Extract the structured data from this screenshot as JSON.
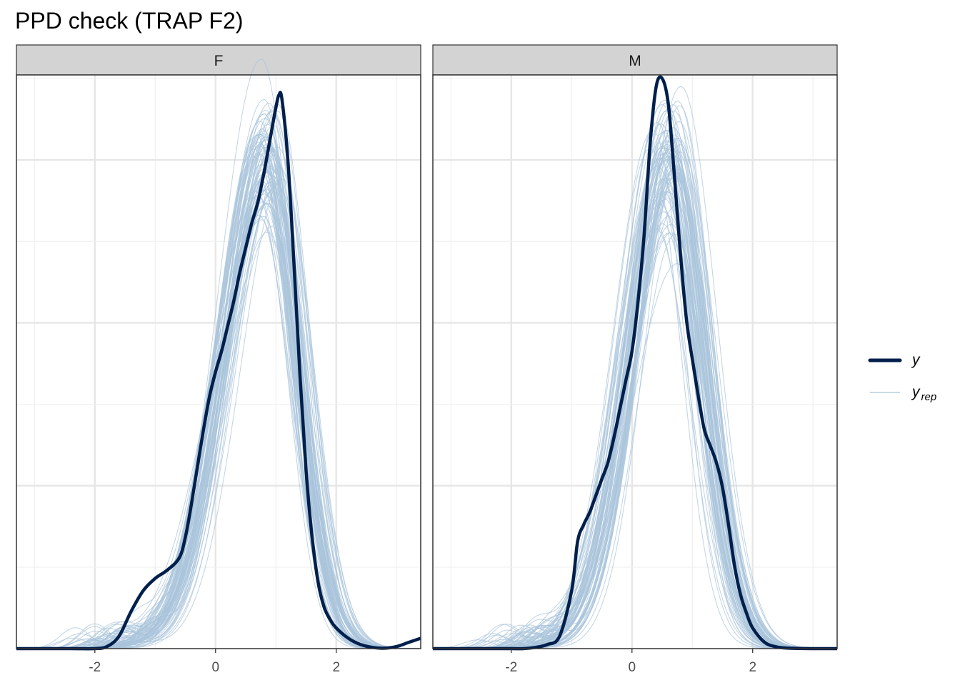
{
  "title": "PPD check (TRAP F2)",
  "chart_data": {
    "type": "line",
    "title": "PPD check (TRAP F2)",
    "xlabel": "",
    "ylabel": "",
    "xlim": [
      -3.3,
      3.4
    ],
    "ylim": [
      0,
      1.0
    ],
    "x_ticks": [
      -2,
      0,
      2
    ],
    "x_tick_labels": [
      "-2",
      "0",
      "2"
    ],
    "y_ticks_shown": false,
    "grid": true,
    "legend_position": "right",
    "legend": {
      "y_label": "y",
      "yrep_label": "y",
      "yrep_subscript": "rep"
    },
    "colors": {
      "y": "#011f4b",
      "yrep": "#a9c4db",
      "strip_bg": "#d3d3d3",
      "panel_border": "#333333",
      "grid_major": "#e6e6e6",
      "grid_minor": "#f0f0f0"
    },
    "n_yrep_draws": 80,
    "panels": [
      {
        "label": "F",
        "y": {
          "x": [
            -3.3,
            -2.4,
            -2.0,
            -1.8,
            -1.6,
            -1.4,
            -1.2,
            -1.0,
            -0.8,
            -0.6,
            -0.5,
            -0.4,
            -0.3,
            -0.2,
            -0.1,
            0.0,
            0.1,
            0.2,
            0.3,
            0.4,
            0.5,
            0.6,
            0.7,
            0.8,
            0.9,
            1.0,
            1.05,
            1.1,
            1.2,
            1.3,
            1.4,
            1.5,
            1.6,
            1.7,
            1.8,
            1.9,
            2.0,
            2.2,
            2.4,
            2.6,
            2.8,
            3.0,
            3.2,
            3.4
          ],
          "values": [
            0.0,
            0.0,
            0.0,
            0.005,
            0.03,
            0.09,
            0.14,
            0.17,
            0.19,
            0.22,
            0.27,
            0.35,
            0.44,
            0.53,
            0.61,
            0.67,
            0.72,
            0.78,
            0.84,
            0.91,
            0.97,
            1.03,
            1.08,
            1.15,
            1.23,
            1.31,
            1.34,
            1.33,
            1.18,
            0.93,
            0.66,
            0.43,
            0.27,
            0.16,
            0.1,
            0.07,
            0.05,
            0.025,
            0.01,
            0.003,
            0.001,
            0.005,
            0.015,
            0.025
          ]
        },
        "yrep_mean": {
          "mu": 0.85,
          "sigma_left": 0.72,
          "sigma_right": 0.52,
          "peak": 1.18
        }
      },
      {
        "label": "M",
        "y": {
          "x": [
            -3.3,
            -2.4,
            -2.0,
            -1.8,
            -1.6,
            -1.4,
            -1.2,
            -1.0,
            -0.9,
            -0.8,
            -0.7,
            -0.6,
            -0.5,
            -0.4,
            -0.3,
            -0.2,
            -0.1,
            0.0,
            0.1,
            0.2,
            0.3,
            0.4,
            0.5,
            0.6,
            0.7,
            0.8,
            0.9,
            1.0,
            1.1,
            1.2,
            1.3,
            1.4,
            1.5,
            1.6,
            1.7,
            1.8,
            1.9,
            2.0,
            2.2,
            2.4,
            2.6,
            3.0,
            3.4
          ],
          "values": [
            0.0,
            0.0,
            0.0,
            0.0,
            0.003,
            0.01,
            0.03,
            0.14,
            0.26,
            0.3,
            0.33,
            0.37,
            0.41,
            0.45,
            0.51,
            0.58,
            0.65,
            0.72,
            0.84,
            1.0,
            1.22,
            1.36,
            1.38,
            1.32,
            1.15,
            0.96,
            0.8,
            0.7,
            0.61,
            0.53,
            0.49,
            0.45,
            0.39,
            0.3,
            0.2,
            0.13,
            0.085,
            0.05,
            0.015,
            0.004,
            0.001,
            0.0,
            0.0
          ]
        },
        "yrep_mean": {
          "mu": 0.62,
          "sigma_left": 0.66,
          "sigma_right": 0.55,
          "peak": 1.18
        }
      }
    ]
  }
}
